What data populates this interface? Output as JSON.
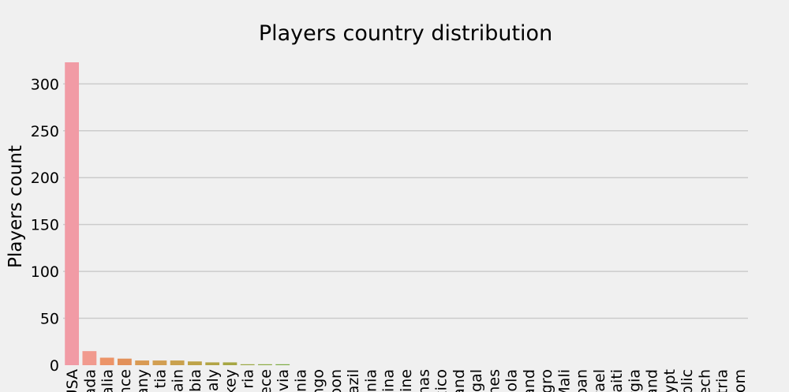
{
  "chart_data": {
    "type": "bar",
    "title": "Players country distribution",
    "xlabel": "",
    "ylabel": "Players count",
    "ylim": [
      0,
      323
    ],
    "yticks": [
      0,
      50,
      100,
      150,
      200,
      250,
      300
    ],
    "grid": true,
    "categories": [
      "USA",
      "Canada",
      "Australia",
      "France",
      "Germany",
      "Croatia",
      "Spain",
      "Serbia",
      "Italy",
      "Turkey",
      "Nigeria",
      "Greece",
      "Latvia",
      "Lithuania",
      "DR Congo",
      "Cameroon",
      "Brazil",
      "Slovenia",
      "Argentina",
      "Ukraine",
      "Bahamas",
      "Mexico",
      "Finland",
      "Senegal",
      "Philippines",
      "Angola",
      "Poland",
      "Montenegro",
      "Mali",
      "Japan",
      "Israel",
      "Haiti",
      "Georgia",
      "Switzerland",
      "Egypt",
      "Dominican Republic",
      "Czech",
      "Austria",
      "United Kingdom"
    ],
    "tick_labels": [
      "USA",
      "nada",
      "alia",
      "nce",
      "any",
      "tia",
      "ain",
      "bia",
      "aly",
      "key",
      "ria",
      "ece",
      "via",
      "nia",
      "ngo",
      "oon",
      "azil",
      "nia",
      "tina",
      "aine",
      "mas",
      "xico",
      "and",
      "egal",
      "nes",
      "ola",
      "and",
      "egro",
      "Mali",
      "pan",
      "rael",
      "aiti",
      "rgia",
      "and",
      "ypt",
      "blic",
      "ech",
      "stria",
      "dom"
    ],
    "values": [
      323,
      15,
      8,
      7,
      5,
      5,
      5,
      4,
      3,
      3,
      1,
      1,
      1,
      0,
      0,
      0,
      0,
      0,
      0,
      0,
      0,
      0,
      0,
      0,
      0,
      0,
      0,
      0,
      0,
      0,
      0,
      0,
      0,
      0,
      0,
      0,
      0,
      0,
      0
    ],
    "colors": [
      "#f19ba5",
      "#f19a8e",
      "#ec9468",
      "#e2915a",
      "#d99a53",
      "#d29f52",
      "#c9a14d",
      "#bea348",
      "#b2a445",
      "#a6a643",
      "#99a842",
      "#8cab43",
      "#7dac44",
      "#6ead48",
      "#5aae5c",
      "#55ad76",
      "#54ac88",
      "#54aa96",
      "#55a9a2",
      "#56a8ab",
      "#57a7b4",
      "#58a5bd",
      "#5aa3c6",
      "#5da1d1",
      "#62a0dc",
      "#6f9de3",
      "#7c9ae8",
      "#8a97ea",
      "#9893ea",
      "#a68fe6",
      "#b48be0",
      "#c288d8",
      "#ce85cf",
      "#d983c3",
      "#e083b7",
      "#e585aa",
      "#e8889e",
      "#ea8b93",
      "#ec8e88"
    ]
  }
}
